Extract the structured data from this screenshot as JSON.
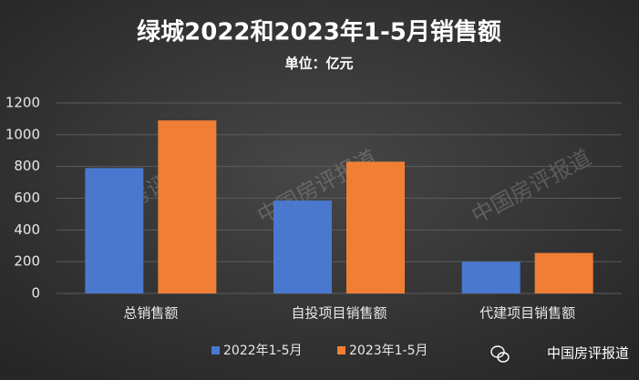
{
  "chart_data": {
    "type": "bar",
    "title": "绿城2022和2023年1-5月销售额",
    "subtitle": "单位：亿元",
    "categories": [
      "总销售额",
      "自投项目销售额",
      "代建项目销售额"
    ],
    "series": [
      {
        "name": "2022年1-5月",
        "color": "#4a78cf",
        "values": [
          790,
          585,
          200
        ]
      },
      {
        "name": "2023年1-5月",
        "color": "#f07f35",
        "values": [
          1090,
          830,
          255
        ]
      }
    ],
    "ylim": [
      0,
      1200
    ],
    "yticks": [
      0,
      200,
      400,
      600,
      800,
      1000,
      1200
    ],
    "grid": true,
    "legend": "bottom",
    "watermark": "中国房评报道",
    "source": "中国房评报道"
  }
}
